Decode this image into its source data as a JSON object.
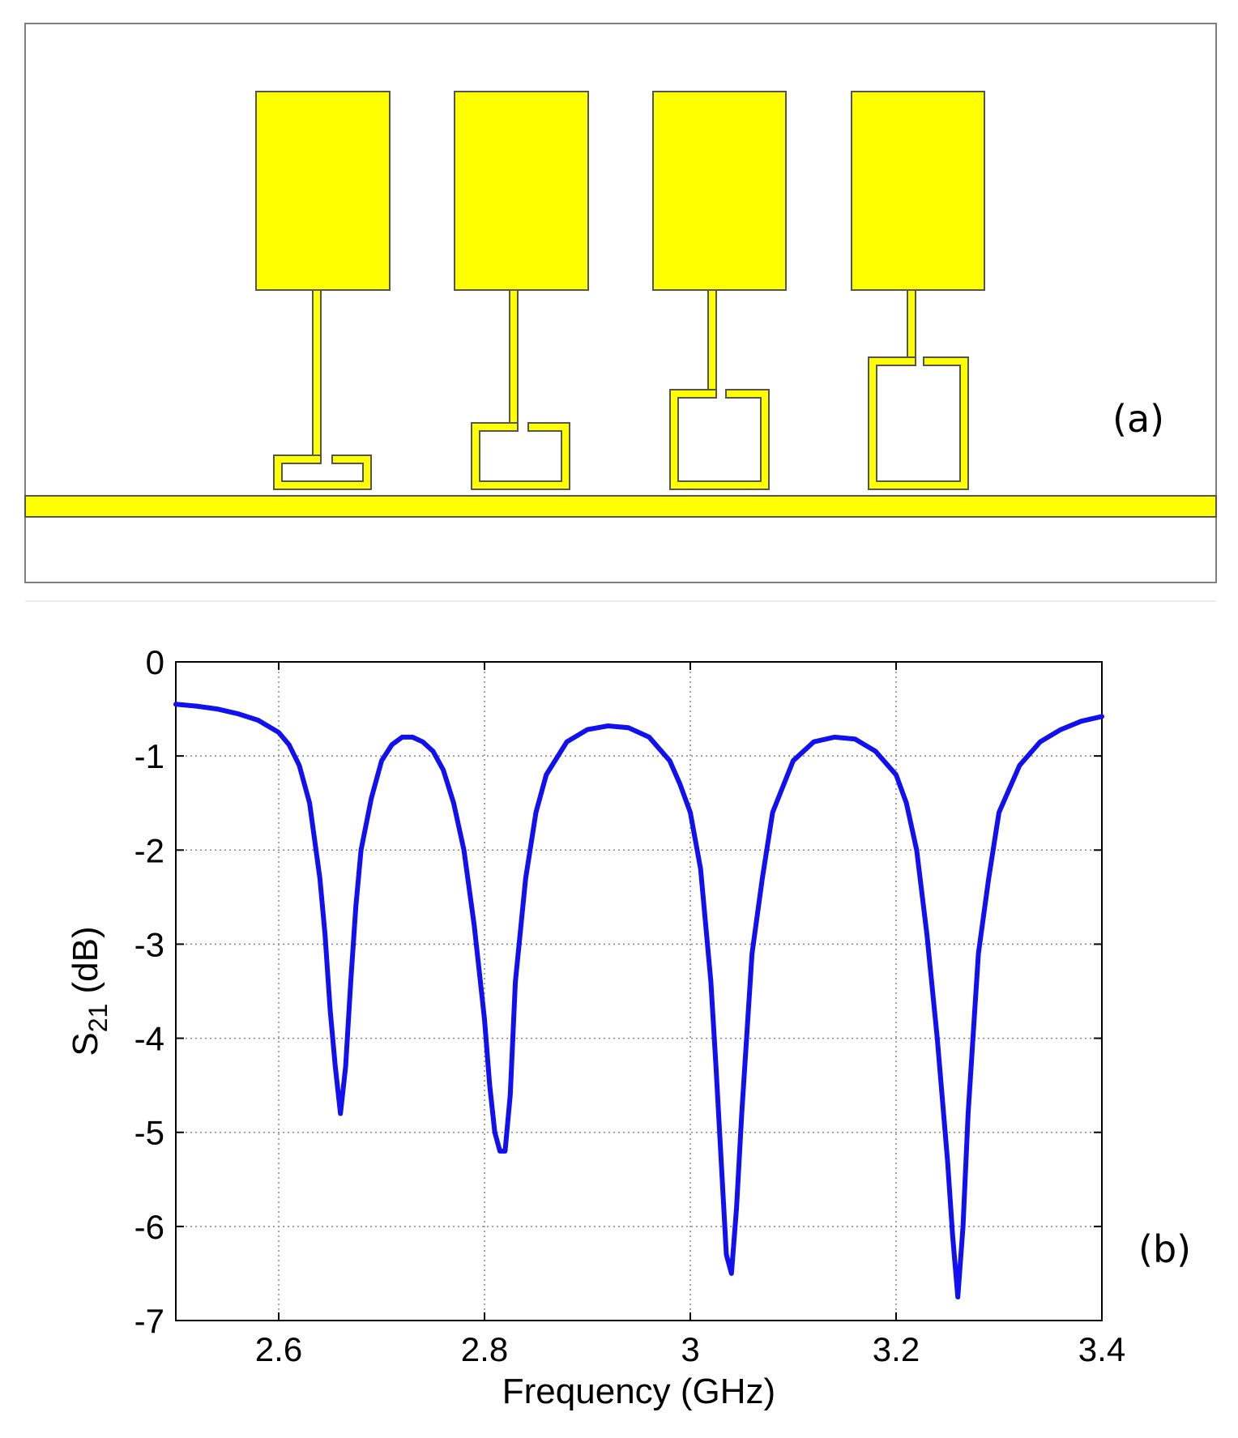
{
  "panel_a": {
    "label": "(a)",
    "description_colors": {
      "metal": "#ffff00",
      "outline": "#555555",
      "background": "#ffffff"
    }
  },
  "panel_b": {
    "label": "(b)"
  },
  "chart_data": {
    "type": "line",
    "title": "",
    "xlabel": "Frequency (GHz)",
    "ylabel_main": "S",
    "ylabel_sub": "21",
    "ylabel_unit": " (dB)",
    "xlim": [
      2.5,
      3.4
    ],
    "ylim": [
      -7,
      0
    ],
    "xticks": [
      2.6,
      2.8,
      3.0,
      3.2,
      3.4
    ],
    "xtick_labels": [
      "2.6",
      "2.8",
      "3",
      "3.2",
      "3.4"
    ],
    "yticks": [
      0,
      -1,
      -2,
      -3,
      -4,
      -5,
      -6,
      -7
    ],
    "ytick_labels": [
      "0",
      "-1",
      "-2",
      "-3",
      "-4",
      "-5",
      "-6",
      "-7"
    ],
    "grid": true,
    "line_color": "#1010f0",
    "series": [
      {
        "x": [
          2.5,
          2.52,
          2.54,
          2.56,
          2.58,
          2.6,
          2.61,
          2.62,
          2.63,
          2.64,
          2.645,
          2.65,
          2.655,
          2.66,
          2.665,
          2.67,
          2.675,
          2.68,
          2.69,
          2.7,
          2.71,
          2.72,
          2.73,
          2.74,
          2.75,
          2.76,
          2.77,
          2.78,
          2.79,
          2.8,
          2.805,
          2.81,
          2.815,
          2.82,
          2.825,
          2.83,
          2.84,
          2.85,
          2.86,
          2.88,
          2.9,
          2.92,
          2.94,
          2.96,
          2.98,
          2.99,
          3.0,
          3.01,
          3.02,
          3.025,
          3.03,
          3.035,
          3.04,
          3.045,
          3.05,
          3.06,
          3.07,
          3.08,
          3.1,
          3.12,
          3.14,
          3.16,
          3.18,
          3.2,
          3.21,
          3.22,
          3.23,
          3.24,
          3.25,
          3.255,
          3.26,
          3.265,
          3.27,
          3.28,
          3.29,
          3.3,
          3.32,
          3.34,
          3.36,
          3.38,
          3.4
        ],
        "y": [
          -0.45,
          -0.47,
          -0.5,
          -0.55,
          -0.62,
          -0.75,
          -0.88,
          -1.1,
          -1.5,
          -2.3,
          -2.9,
          -3.7,
          -4.3,
          -4.8,
          -4.3,
          -3.4,
          -2.6,
          -2.0,
          -1.45,
          -1.05,
          -0.88,
          -0.8,
          -0.8,
          -0.85,
          -0.95,
          -1.15,
          -1.5,
          -2.0,
          -2.8,
          -3.8,
          -4.5,
          -5.0,
          -5.2,
          -5.2,
          -4.6,
          -3.4,
          -2.3,
          -1.6,
          -1.2,
          -0.85,
          -0.72,
          -0.68,
          -0.7,
          -0.8,
          -1.05,
          -1.3,
          -1.6,
          -2.2,
          -3.4,
          -4.3,
          -5.3,
          -6.3,
          -6.5,
          -5.8,
          -4.8,
          -3.1,
          -2.3,
          -1.6,
          -1.05,
          -0.85,
          -0.8,
          -0.82,
          -0.95,
          -1.2,
          -1.5,
          -2.0,
          -2.9,
          -4.0,
          -5.3,
          -6.1,
          -6.75,
          -6.0,
          -4.8,
          -3.1,
          -2.3,
          -1.6,
          -1.1,
          -0.85,
          -0.72,
          -0.63,
          -0.58
        ]
      }
    ]
  }
}
